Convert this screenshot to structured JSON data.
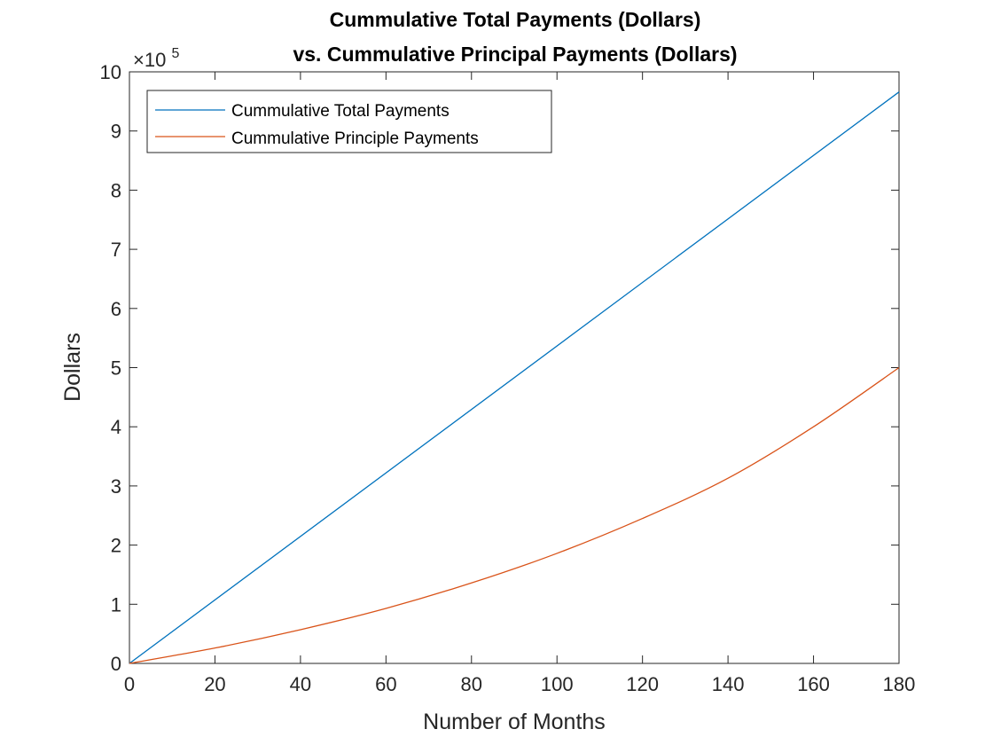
{
  "chart_data": {
    "type": "line",
    "title": [
      "Cummulative Total Payments (Dollars)",
      "vs. Cummulative Principal Payments (Dollars)"
    ],
    "xlabel": "Number of Months",
    "ylabel": "Dollars",
    "xlim": [
      0,
      180
    ],
    "ylim": [
      0,
      1000000
    ],
    "y_exponent_label": "×10",
    "y_exponent_power": "5",
    "xticks": [
      "0",
      "20",
      "40",
      "60",
      "80",
      "100",
      "120",
      "140",
      "160",
      "180"
    ],
    "yticks": [
      "0",
      "1",
      "2",
      "3",
      "4",
      "5",
      "6",
      "7",
      "8",
      "9",
      "10"
    ],
    "legend_location": "top-left",
    "grid": false,
    "series": [
      {
        "name": "Cummulative Total Payments",
        "color": "#0072BD",
        "x": [
          0,
          180
        ],
        "y": [
          0,
          966000
        ]
      },
      {
        "name": "Cummulative Principle Payments",
        "color": "#D95319",
        "x": [
          0,
          20,
          40,
          60,
          80,
          100,
          120,
          140,
          160,
          180
        ],
        "y": [
          0,
          26000,
          57000,
          93000,
          136000,
          186000,
          245000,
          313000,
          400000,
          500000
        ]
      }
    ]
  }
}
